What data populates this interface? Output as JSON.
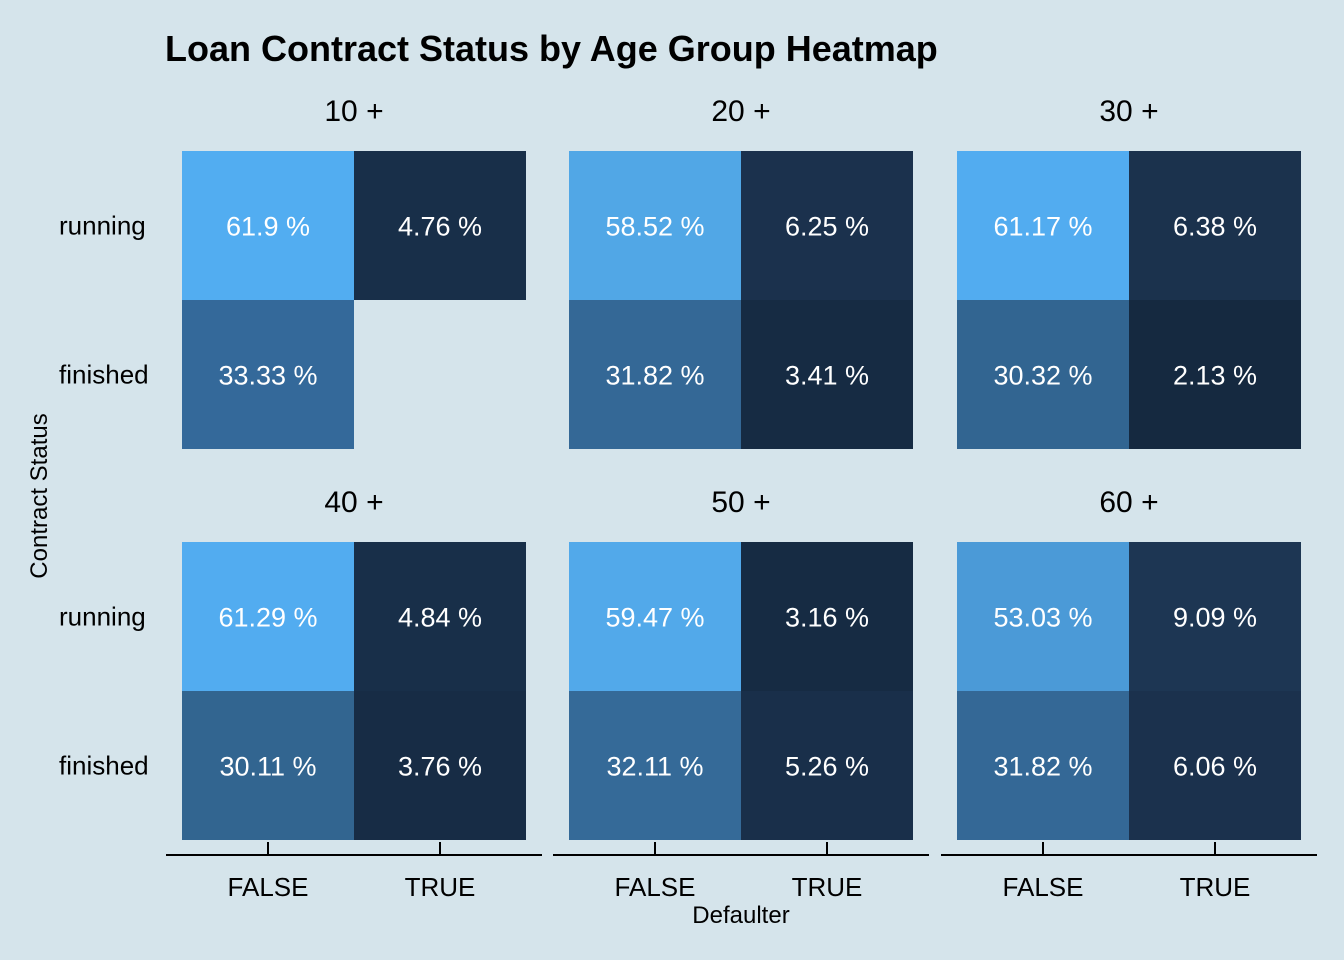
{
  "chart_data": {
    "type": "heatmap",
    "title": "Loan Contract Status by Age Group Heatmap",
    "xlabel": "Defaulter",
    "ylabel": "Contract Status",
    "x_categories": [
      "FALSE",
      "TRUE"
    ],
    "y_categories": [
      "running",
      "finished"
    ],
    "panels": [
      {
        "label": "10 +",
        "cells": [
          {
            "status": "running",
            "defaulter": "FALSE",
            "value": 61.9,
            "label": "61.9 %",
            "color": "#52adf1"
          },
          {
            "status": "running",
            "defaulter": "TRUE",
            "value": 4.76,
            "label": "4.76 %",
            "color": "#182f49"
          },
          {
            "status": "finished",
            "defaulter": "FALSE",
            "value": 33.33,
            "label": "33.33 %",
            "color": "#34699a"
          }
        ]
      },
      {
        "label": "20 +",
        "cells": [
          {
            "status": "running",
            "defaulter": "FALSE",
            "value": 58.52,
            "label": "58.52 %",
            "color": "#51a7e6"
          },
          {
            "status": "running",
            "defaulter": "TRUE",
            "value": 6.25,
            "label": "6.25 %",
            "color": "#1b314d"
          },
          {
            "status": "finished",
            "defaulter": "FALSE",
            "value": 31.82,
            "label": "31.82 %",
            "color": "#346896"
          },
          {
            "status": "finished",
            "defaulter": "TRUE",
            "value": 3.41,
            "label": "3.41 %",
            "color": "#162b43"
          }
        ]
      },
      {
        "label": "30 +",
        "cells": [
          {
            "status": "running",
            "defaulter": "FALSE",
            "value": 61.17,
            "label": "61.17 %",
            "color": "#52acf0"
          },
          {
            "status": "running",
            "defaulter": "TRUE",
            "value": 6.38,
            "label": "6.38 %",
            "color": "#1b324d"
          },
          {
            "status": "finished",
            "defaulter": "FALSE",
            "value": 30.32,
            "label": "30.32 %",
            "color": "#326591"
          },
          {
            "status": "finished",
            "defaulter": "TRUE",
            "value": 2.13,
            "label": "2.13 %",
            "color": "#152940"
          }
        ]
      },
      {
        "label": "40 +",
        "cells": [
          {
            "status": "running",
            "defaulter": "FALSE",
            "value": 61.29,
            "label": "61.29 %",
            "color": "#52acf0"
          },
          {
            "status": "running",
            "defaulter": "TRUE",
            "value": 4.84,
            "label": "4.84 %",
            "color": "#182f49"
          },
          {
            "status": "finished",
            "defaulter": "FALSE",
            "value": 30.11,
            "label": "30.11 %",
            "color": "#326590"
          },
          {
            "status": "finished",
            "defaulter": "TRUE",
            "value": 3.76,
            "label": "3.76 %",
            "color": "#172c45"
          }
        ]
      },
      {
        "label": "50 +",
        "cells": [
          {
            "status": "running",
            "defaulter": "FALSE",
            "value": 59.47,
            "label": "59.47 %",
            "color": "#52a9ea"
          },
          {
            "status": "running",
            "defaulter": "TRUE",
            "value": 3.16,
            "label": "3.16 %",
            "color": "#162b43"
          },
          {
            "status": "finished",
            "defaulter": "FALSE",
            "value": 32.11,
            "label": "32.11 %",
            "color": "#356a98"
          },
          {
            "status": "finished",
            "defaulter": "TRUE",
            "value": 5.26,
            "label": "5.26 %",
            "color": "#192f4a"
          }
        ]
      },
      {
        "label": "60 +",
        "cells": [
          {
            "status": "running",
            "defaulter": "FALSE",
            "value": 53.03,
            "label": "53.03 %",
            "color": "#4b9ad7"
          },
          {
            "status": "running",
            "defaulter": "TRUE",
            "value": 9.09,
            "label": "9.09 %",
            "color": "#1d3653"
          },
          {
            "status": "finished",
            "defaulter": "FALSE",
            "value": 31.82,
            "label": "31.82 %",
            "color": "#346896"
          },
          {
            "status": "finished",
            "defaulter": "TRUE",
            "value": 6.06,
            "label": "6.06 %",
            "color": "#1b314d"
          }
        ]
      }
    ],
    "colors": {
      "background": "#d5e4eb",
      "label_text": "#ffffff",
      "axis_line": "#000000"
    },
    "legend": "none",
    "grid": false
  }
}
